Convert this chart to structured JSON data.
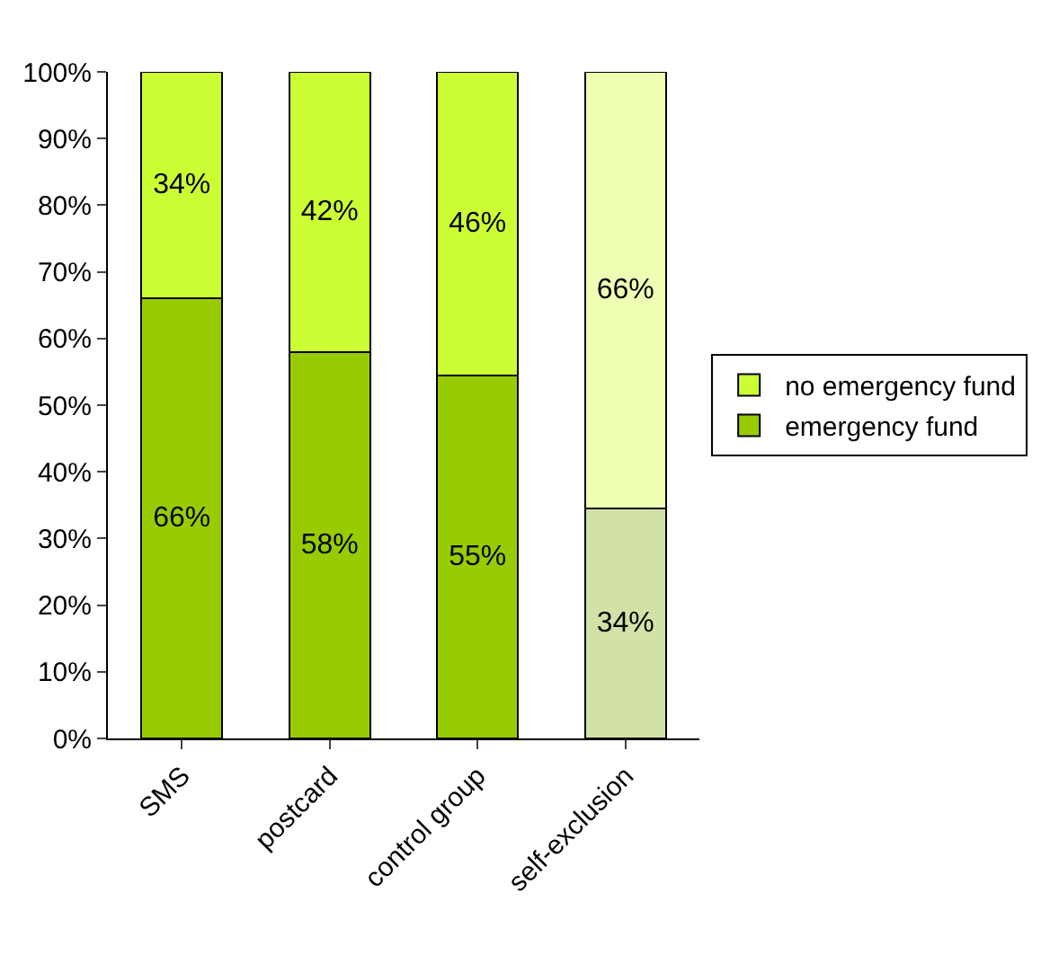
{
  "chart_data": {
    "type": "bar",
    "stacked": true,
    "categories": [
      "SMS",
      "postcard",
      "control group",
      "self-exclusion"
    ],
    "series": [
      {
        "name": "emergency fund",
        "colors": [
          "#99cc00",
          "#99cc00",
          "#99cc00",
          "#d2e2a6"
        ],
        "values": [
          66,
          58,
          54.5,
          34.5
        ],
        "value_labels": [
          "66%",
          "58%",
          "55%",
          "34%"
        ]
      },
      {
        "name": "no emergency fund",
        "colors": [
          "#ccff33",
          "#ccff33",
          "#ccff33",
          "#eeffb3"
        ],
        "values": [
          34,
          42,
          45.5,
          65.5
        ],
        "value_labels": [
          "34%",
          "42%",
          "46%",
          "66%"
        ]
      }
    ],
    "ylim": [
      0,
      100
    ],
    "yticks": [
      {
        "value": 0,
        "label": "0%"
      },
      {
        "value": 10,
        "label": "10%"
      },
      {
        "value": 20,
        "label": "20%"
      },
      {
        "value": 30,
        "label": "30%"
      },
      {
        "value": 40,
        "label": "40%"
      },
      {
        "value": 50,
        "label": "50%"
      },
      {
        "value": 60,
        "label": "60%"
      },
      {
        "value": 70,
        "label": "70%"
      },
      {
        "value": 80,
        "label": "80%"
      },
      {
        "value": 90,
        "label": "90%"
      },
      {
        "value": 100,
        "label": "100%"
      }
    ],
    "grid": false,
    "legend": "right"
  }
}
